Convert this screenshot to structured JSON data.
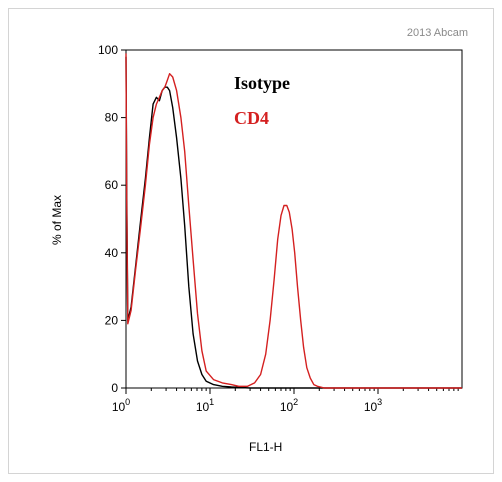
{
  "watermark": "2013 Abcam",
  "chart_data": {
    "type": "line",
    "title": "",
    "xlabel": "FL1-H",
    "ylabel": "% of Max",
    "x_scale": "log",
    "xlim": [
      1,
      10000
    ],
    "ylim": [
      0,
      100
    ],
    "yticks": [
      0,
      20,
      40,
      60,
      80,
      100
    ],
    "xticks": [
      {
        "value": 1,
        "label": "10",
        "exp": "0"
      },
      {
        "value": 10,
        "label": "10",
        "exp": "1"
      },
      {
        "value": 100,
        "label": "10",
        "exp": "2"
      },
      {
        "value": 1000,
        "label": "10",
        "exp": "3"
      }
    ],
    "grid": false,
    "legend_position": "top-center",
    "series": [
      {
        "name": "Isotype",
        "color": "#000000",
        "points": [
          [
            1.0,
            98
          ],
          [
            1.02,
            60
          ],
          [
            1.05,
            20
          ],
          [
            1.15,
            24
          ],
          [
            1.3,
            36
          ],
          [
            1.5,
            50
          ],
          [
            1.7,
            62
          ],
          [
            1.9,
            74
          ],
          [
            2.1,
            84
          ],
          [
            2.3,
            86
          ],
          [
            2.5,
            85
          ],
          [
            2.7,
            88
          ],
          [
            2.9,
            89
          ],
          [
            3.1,
            89
          ],
          [
            3.3,
            88
          ],
          [
            3.6,
            83
          ],
          [
            4.0,
            74
          ],
          [
            4.5,
            62
          ],
          [
            5.0,
            48
          ],
          [
            5.6,
            30
          ],
          [
            6.3,
            16
          ],
          [
            7.1,
            8
          ],
          [
            8.0,
            4
          ],
          [
            9.0,
            2
          ],
          [
            11,
            1
          ],
          [
            14,
            0.5
          ],
          [
            18,
            0.3
          ],
          [
            30,
            0
          ],
          [
            10000,
            0
          ]
        ]
      },
      {
        "name": "CD4",
        "color": "#d42020",
        "points": [
          [
            1.0,
            99
          ],
          [
            1.02,
            55
          ],
          [
            1.05,
            19
          ],
          [
            1.15,
            23
          ],
          [
            1.3,
            35
          ],
          [
            1.5,
            48
          ],
          [
            1.7,
            60
          ],
          [
            1.9,
            72
          ],
          [
            2.1,
            80
          ],
          [
            2.3,
            84
          ],
          [
            2.5,
            86
          ],
          [
            2.7,
            88
          ],
          [
            2.9,
            89
          ],
          [
            3.1,
            91
          ],
          [
            3.3,
            93
          ],
          [
            3.6,
            92
          ],
          [
            4.0,
            88
          ],
          [
            4.5,
            80
          ],
          [
            5.0,
            70
          ],
          [
            5.6,
            54
          ],
          [
            6.3,
            38
          ],
          [
            7.1,
            22
          ],
          [
            8.0,
            11
          ],
          [
            9.0,
            5
          ],
          [
            11,
            2.5
          ],
          [
            14,
            1.5
          ],
          [
            18,
            1
          ],
          [
            22,
            0.5
          ],
          [
            28,
            0.5
          ],
          [
            34,
            1.5
          ],
          [
            40,
            4
          ],
          [
            46,
            10
          ],
          [
            52,
            20
          ],
          [
            58,
            32
          ],
          [
            64,
            44
          ],
          [
            70,
            51
          ],
          [
            76,
            54
          ],
          [
            82,
            54
          ],
          [
            88,
            52
          ],
          [
            95,
            47
          ],
          [
            102,
            40
          ],
          [
            110,
            30
          ],
          [
            120,
            20
          ],
          [
            130,
            12
          ],
          [
            142,
            6
          ],
          [
            156,
            3
          ],
          [
            172,
            1
          ],
          [
            190,
            0.5
          ],
          [
            230,
            0
          ],
          [
            10000,
            0
          ]
        ]
      }
    ]
  }
}
